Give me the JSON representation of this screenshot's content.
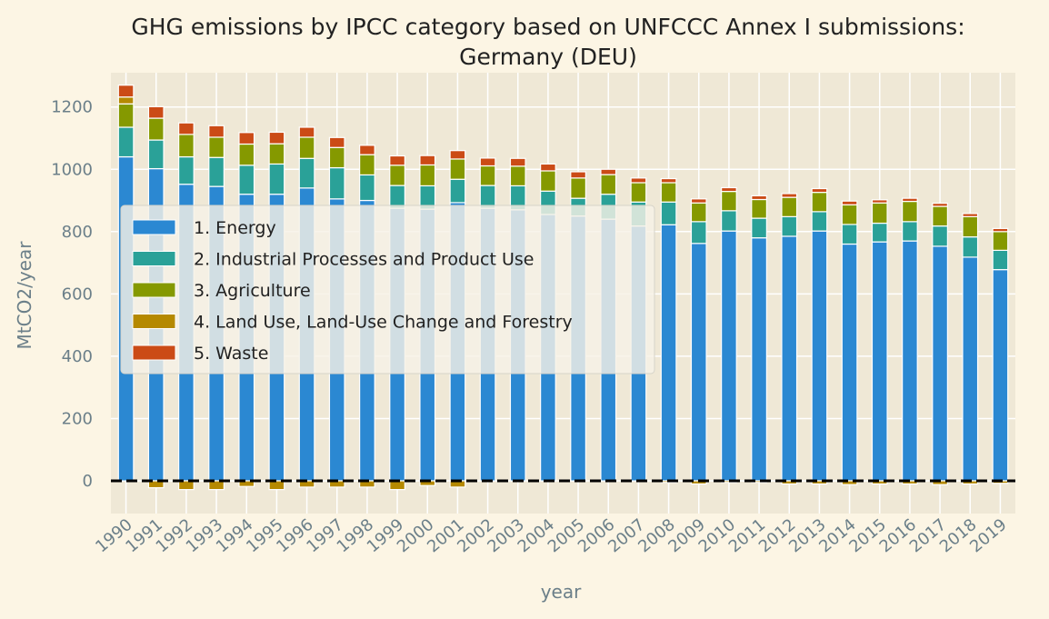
{
  "chart_data": {
    "type": "bar",
    "stacked": true,
    "title": "GHG emissions by IPCC category based on UNFCCC Annex I submissions:",
    "subtitle": "Germany (DEU)",
    "xlabel": "year",
    "ylabel": "MtCO2/year",
    "ylim": [
      -105,
      1310
    ],
    "yticks": [
      0,
      200,
      400,
      600,
      800,
      1000,
      1200
    ],
    "grid": true,
    "legend_position": "left-center",
    "zero_line": "dashed black",
    "colors": {
      "background": "#fcf5e4",
      "plot_area": "#efe8d6",
      "grid": "#ffffff"
    },
    "categories": [
      "1990",
      "1991",
      "1992",
      "1993",
      "1994",
      "1995",
      "1996",
      "1997",
      "1998",
      "1999",
      "2000",
      "2001",
      "2002",
      "2003",
      "2004",
      "2005",
      "2006",
      "2007",
      "2008",
      "2009",
      "2010",
      "2011",
      "2012",
      "2013",
      "2014",
      "2015",
      "2016",
      "2017",
      "2018",
      "2019"
    ],
    "series": [
      {
        "name": "1. Energy",
        "color": "#2b88d2",
        "values": [
          1040,
          1002,
          952,
          945,
          920,
          920,
          940,
          905,
          900,
          875,
          872,
          893,
          875,
          870,
          855,
          850,
          840,
          818,
          822,
          762,
          802,
          780,
          785,
          802,
          760,
          767,
          770,
          753,
          718,
          678
        ]
      },
      {
        "name": "2. Industrial Processes and Product Use",
        "color": "#2aa198",
        "values": [
          95,
          92,
          88,
          93,
          93,
          97,
          95,
          100,
          82,
          73,
          75,
          75,
          73,
          77,
          75,
          57,
          80,
          77,
          73,
          70,
          65,
          63,
          63,
          62,
          63,
          60,
          62,
          65,
          65,
          62
        ]
      },
      {
        "name": "3. Agriculture",
        "color": "#859900",
        "values": [
          75,
          70,
          72,
          65,
          68,
          65,
          68,
          65,
          65,
          65,
          67,
          65,
          63,
          63,
          65,
          65,
          63,
          62,
          62,
          60,
          62,
          60,
          62,
          62,
          63,
          65,
          65,
          63,
          65,
          60
        ]
      },
      {
        "name": "4. Land Use, Land-Use Change and Forestry",
        "color": "#b58900",
        "values": [
          22,
          -22,
          -28,
          -28,
          -18,
          -28,
          -20,
          -20,
          -20,
          -28,
          -15,
          -20,
          0,
          0,
          0,
          0,
          0,
          0,
          -5,
          -10,
          -5,
          -5,
          -10,
          -10,
          -12,
          -10,
          -10,
          -12,
          -10,
          -8
        ]
      },
      {
        "name": "5. Waste",
        "color": "#cb4b16",
        "values": [
          38,
          37,
          37,
          37,
          37,
          37,
          32,
          32,
          30,
          30,
          30,
          27,
          25,
          25,
          22,
          20,
          17,
          15,
          13,
          13,
          12,
          12,
          12,
          12,
          12,
          10,
          10,
          10,
          10,
          10
        ]
      }
    ]
  }
}
